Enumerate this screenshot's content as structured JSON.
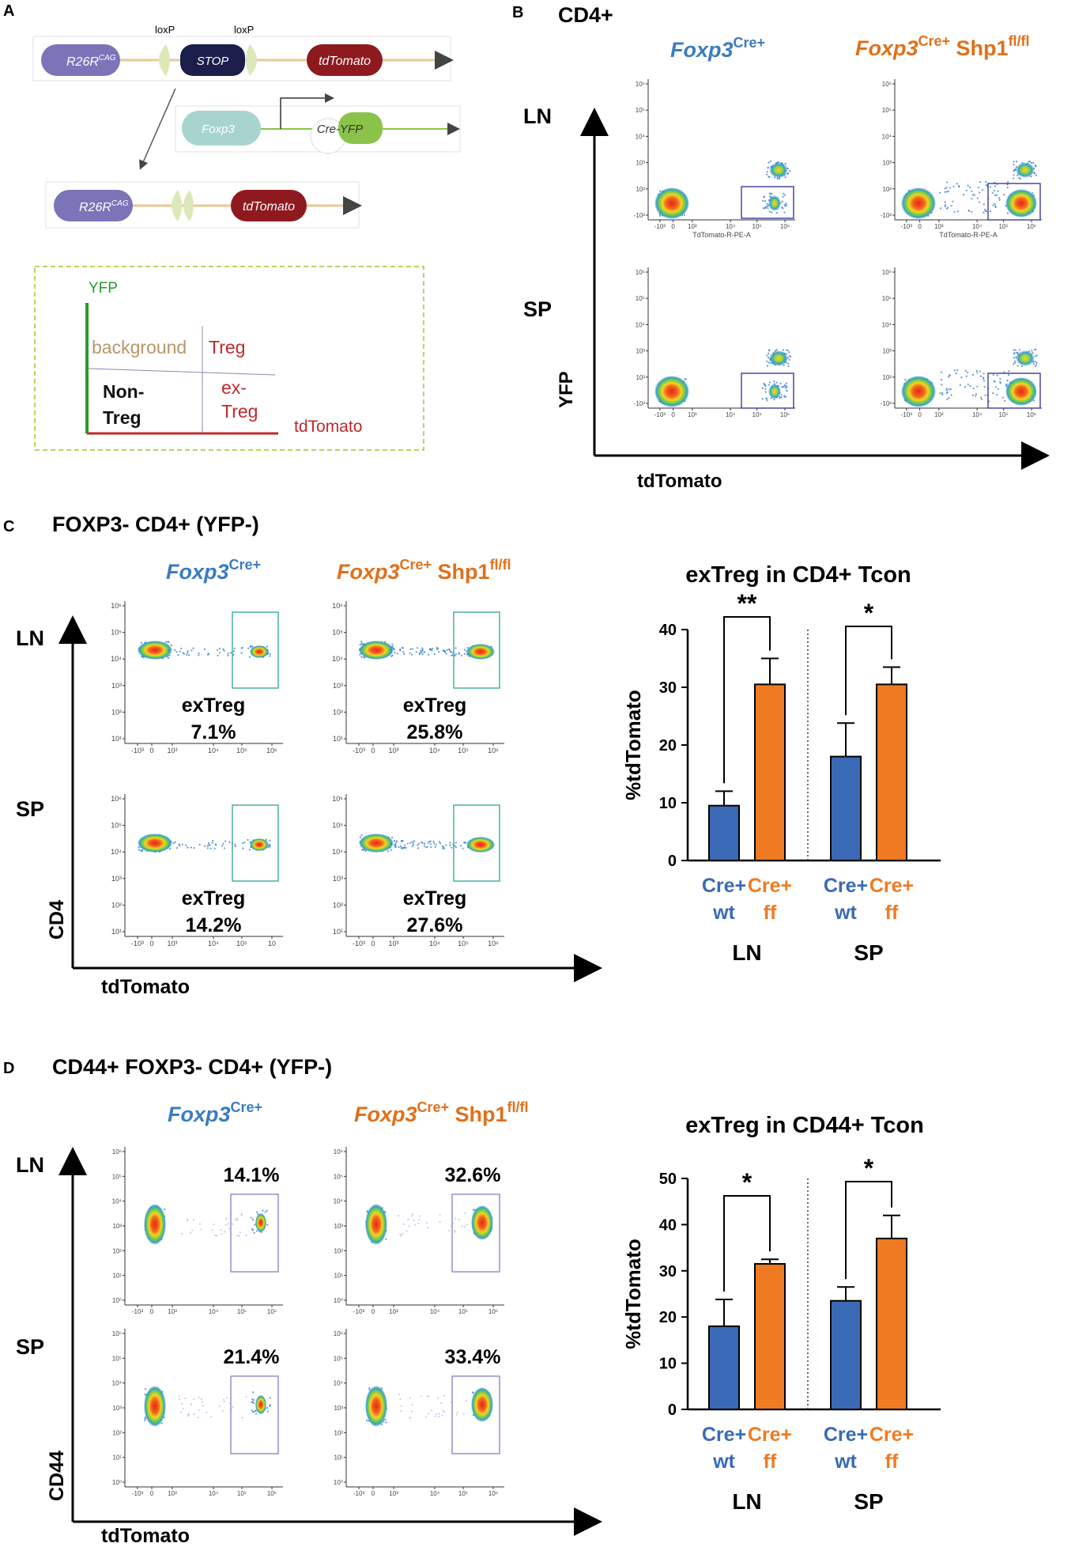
{
  "panel_a": {
    "letter": "A",
    "construct": {
      "r26r": "R26R",
      "cag": "CAG",
      "loxp1": "loxP",
      "loxp2": "loxP",
      "stop": "STOP",
      "tdtomato": "tdTomato"
    },
    "cre": {
      "foxp3": "Foxp3",
      "cre_yfp": "Cre-YFP"
    },
    "recombined": {
      "r26r": "R26R",
      "cag": "CAG",
      "tdtomato": "tdTomato"
    },
    "legend": {
      "yfp": "YFP",
      "background": "background",
      "treg": "Treg",
      "non_treg_line1": "Non-",
      "non_treg_line2": "Treg",
      "ex_treg_line1": "ex-",
      "ex_treg_line2": "Treg",
      "tdtomato": "tdTomato"
    },
    "colors": {
      "r26r": "#7b74b8",
      "stop": "#1b1d4a",
      "tdtomato": "#8e1a1f",
      "foxp3": "#a8d4cf",
      "yfp": "#8bc34a",
      "arrow": "#e8c898"
    }
  },
  "panel_b": {
    "letter": "B",
    "title": "CD4+",
    "col1": {
      "main": "Foxp3",
      "sup": "Cre+"
    },
    "col2": {
      "main": "Foxp3",
      "sup": "Cre+",
      "suffix": " Shp1",
      "sup2": "fl/fl"
    },
    "row_ln": "LN",
    "row_sp": "SP",
    "yaxis": "YFP",
    "xaxis": "tdTomato",
    "x_param": "TdTomato-R-PE-A",
    "yticks": [
      "10⁶",
      "10⁵",
      "10⁴",
      "10³",
      "10²",
      "-10²"
    ],
    "xticks": [
      "-10³",
      "0",
      "10³",
      "10⁴",
      "10⁵",
      "10⁶"
    ]
  },
  "panel_c": {
    "letter": "C",
    "title": "FOXP3- CD4+ (YFP-)",
    "col1": {
      "main": "Foxp3",
      "sup": "Cre+"
    },
    "col2": {
      "main": "Foxp3",
      "sup": "Cre+",
      "suffix": " Shp1",
      "sup2": "fl/fl"
    },
    "row_ln": "LN",
    "row_sp": "SP",
    "yaxis": "CD4",
    "xaxis": "tdTomato",
    "gate_label": "exTreg",
    "pct": {
      "ln_wt": "7.1%",
      "ln_ff": "25.8%",
      "sp_wt": "14.2%",
      "sp_ff": "27.6%"
    },
    "yticks": [
      "10⁶",
      "10⁵",
      "10⁴",
      "10³",
      "10²",
      "10¹"
    ],
    "xticks": [
      "-10³",
      "0",
      "10³",
      "10⁴",
      "10⁵",
      "10⁶"
    ],
    "xticks_sp_wt": [
      "-10³",
      "0",
      "10³",
      "10⁴",
      "10⁵",
      "10"
    ]
  },
  "panel_d": {
    "letter": "D",
    "title": "CD44+ FOXP3- CD4+ (YFP-)",
    "col1": {
      "main": "Foxp3",
      "sup": "Cre+"
    },
    "col2": {
      "main": "Foxp3",
      "sup": "Cre+",
      "suffix": " Shp1",
      "sup2": "fl/fl"
    },
    "row_ln": "LN",
    "row_sp": "SP",
    "yaxis": "CD44",
    "xaxis": "tdTomato",
    "pct": {
      "ln_wt": "14.1%",
      "ln_ff": "32.6%",
      "sp_wt": "21.4%",
      "sp_ff": "33.4%"
    },
    "yticks": [
      "10⁶",
      "10⁵",
      "10⁴",
      "10³",
      "10²",
      "10¹",
      "10⁰"
    ],
    "xticks": [
      "-10³",
      "0",
      "10³",
      "10⁴",
      "10⁵",
      "10⁶"
    ]
  },
  "chart_data": [
    {
      "type": "bar",
      "title": "exTreg in CD4+ Tcon",
      "ylabel": "%tdTomato",
      "ylim": [
        0,
        40
      ],
      "yticks": [
        0,
        10,
        20,
        30,
        40
      ],
      "groups": [
        "LN",
        "SP"
      ],
      "categories": [
        {
          "l1": "Cre+",
          "l2": "wt"
        },
        {
          "l1": "Cre+",
          "l2": "ff"
        },
        {
          "l1": "Cre+",
          "l2": "wt"
        },
        {
          "l1": "Cre+",
          "l2": "ff"
        }
      ],
      "values": [
        9.5,
        30.5,
        18,
        30.5
      ],
      "errors": [
        2.5,
        4.5,
        5.8,
        3.0
      ],
      "colors": [
        "#3a6ab5",
        "#f07a22",
        "#3a6ab5",
        "#f07a22"
      ],
      "significance": [
        "**",
        "*"
      ]
    },
    {
      "type": "bar",
      "title": "exTreg in CD44+ Tcon",
      "ylabel": "%tdTomato",
      "ylim": [
        0,
        50
      ],
      "yticks": [
        0,
        10,
        20,
        30,
        40,
        50
      ],
      "groups": [
        "LN",
        "SP"
      ],
      "categories": [
        {
          "l1": "Cre+",
          "l2": "wt"
        },
        {
          "l1": "Cre+",
          "l2": "ff"
        },
        {
          "l1": "Cre+",
          "l2": "wt"
        },
        {
          "l1": "Cre+",
          "l2": "ff"
        }
      ],
      "values": [
        18,
        31.5,
        23.5,
        37
      ],
      "errors": [
        5.8,
        1.0,
        3.0,
        5.0
      ],
      "colors": [
        "#3a6ab5",
        "#f07a22",
        "#3a6ab5",
        "#f07a22"
      ],
      "significance": [
        "*",
        "*"
      ]
    }
  ]
}
